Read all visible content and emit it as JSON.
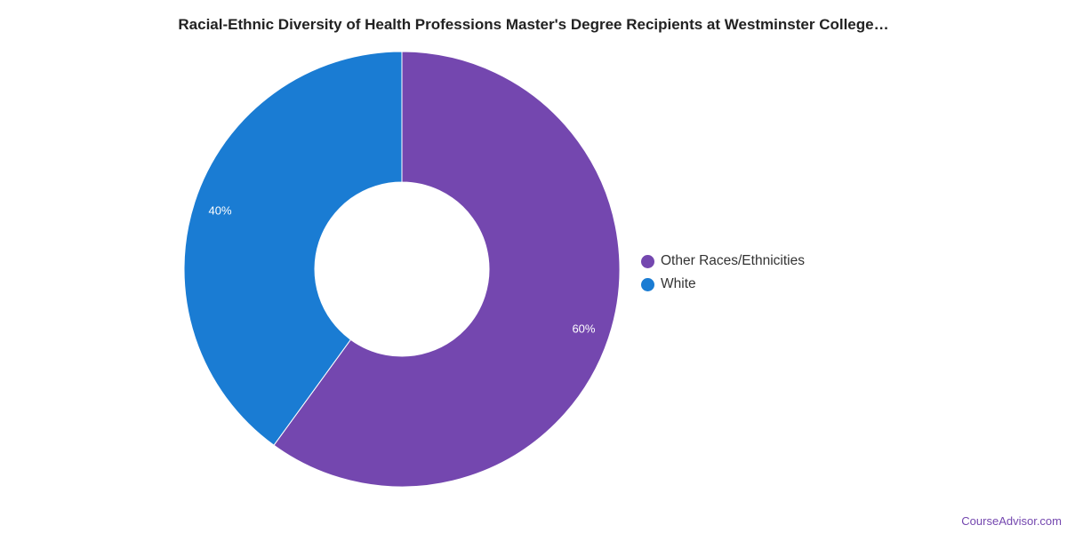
{
  "chart_data": {
    "type": "pie",
    "variant": "donut",
    "title": "Racial-Ethnic Diversity of Health Professions Master's Degree Recipients at Westminster College…",
    "categories": [
      "Other Races/Ethnicities",
      "White"
    ],
    "values": [
      60,
      40
    ],
    "data_labels": [
      "60%",
      "40%"
    ],
    "colors": [
      "#7447AF",
      "#1A7CD3"
    ],
    "legend_position": "right"
  },
  "credit": "CourseAdvisor.com"
}
